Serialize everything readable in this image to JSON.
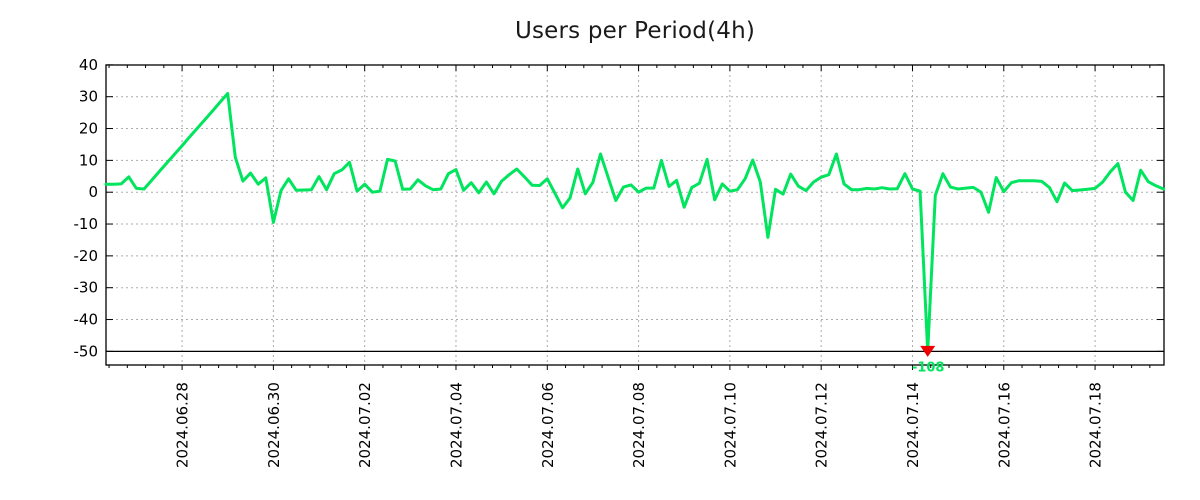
{
  "chart_data": {
    "type": "line",
    "title": "Users per Period(4h)",
    "xlabel": "",
    "ylabel": "",
    "grid": "dashed",
    "legend": "none",
    "y_ticks": [
      40,
      30,
      20,
      10,
      0,
      -10,
      -20,
      -30,
      -40,
      -50
    ],
    "ylim": [
      -54.3,
      40
    ],
    "y_solid_rule_at": -50,
    "x_start": "2024-06-26 08:00",
    "x_step_hours": 4,
    "x_end": "2024-07-19 12:00",
    "x_tick_labels": [
      "2024.06.28",
      "2024.06.30",
      "2024.07.02",
      "2024.07.04",
      "2024.07.06",
      "2024.07.08",
      "2024.07.10",
      "2024.07.12",
      "2024.07.14",
      "2024.07.16",
      "2024.07.18"
    ],
    "x_tick_start_index": 10,
    "x_tick_index_step": 12,
    "x_minor_per_major": 5,
    "values": [
      2.5,
      2.5,
      2.6,
      4.8,
      1.2,
      1.0,
      3.7,
      6.5,
      9.2,
      11.9,
      14.6,
      17.4,
      20.1,
      22.8,
      25.5,
      28.3,
      31.0,
      11.0,
      3.5,
      6.0,
      2.5,
      4.5,
      -9.5,
      0.5,
      4.2,
      0.6,
      0.7,
      0.8,
      4.9,
      0.8,
      5.8,
      7.0,
      9.4,
      0.3,
      2.5,
      0.0,
      0.3,
      10.3,
      9.8,
      0.9,
      1.0,
      3.9,
      2.0,
      0.8,
      1.0,
      5.8,
      7.1,
      0.6,
      3.0,
      -0.2,
      3.2,
      -0.5,
      3.5,
      5.5,
      7.3,
      4.8,
      2.2,
      2.1,
      4.2,
      -0.3,
      -4.9,
      -1.8,
      7.3,
      -0.5,
      3.1,
      12.0,
      4.7,
      -2.6,
      1.6,
      2.3,
      0.0,
      1.3,
      1.3,
      10.0,
      1.8,
      3.7,
      -4.7,
      1.5,
      2.8,
      10.3,
      -2.4,
      2.6,
      0.3,
      0.8,
      4.2,
      10.1,
      3.2,
      -14.2,
      0.9,
      -0.6,
      5.7,
      1.9,
      0.5,
      3.2,
      4.7,
      5.5,
      12.0,
      2.6,
      0.8,
      0.8,
      1.2,
      1.0,
      1.4,
      1.0,
      1.1,
      5.8,
      1.0,
      0.3,
      -108.0,
      -1.0,
      5.8,
      1.6,
      1.0,
      1.3,
      1.5,
      0.0,
      -6.3,
      4.6,
      0.2,
      3.0,
      3.6,
      3.6,
      3.6,
      3.4,
      1.5,
      -3.0,
      2.9,
      0.5,
      0.7,
      0.9,
      1.2,
      3.2,
      6.4,
      9.0,
      0.0,
      -2.6,
      6.9,
      3.3,
      2.0,
      1.0
    ],
    "clip_annotation": {
      "index": 108,
      "time": "2024-07-14 08:00",
      "actual_value": -108,
      "label": "-108",
      "marker": "red-triangle-down"
    },
    "colors": {
      "line": "#00e45e",
      "marker": "#ee0000",
      "annotation_text": "#00e45e",
      "grid": "#ababab",
      "axis": "#000000",
      "tick_text": "#000000",
      "title_text": "#1a1a1a",
      "background": "#ffffff"
    }
  }
}
